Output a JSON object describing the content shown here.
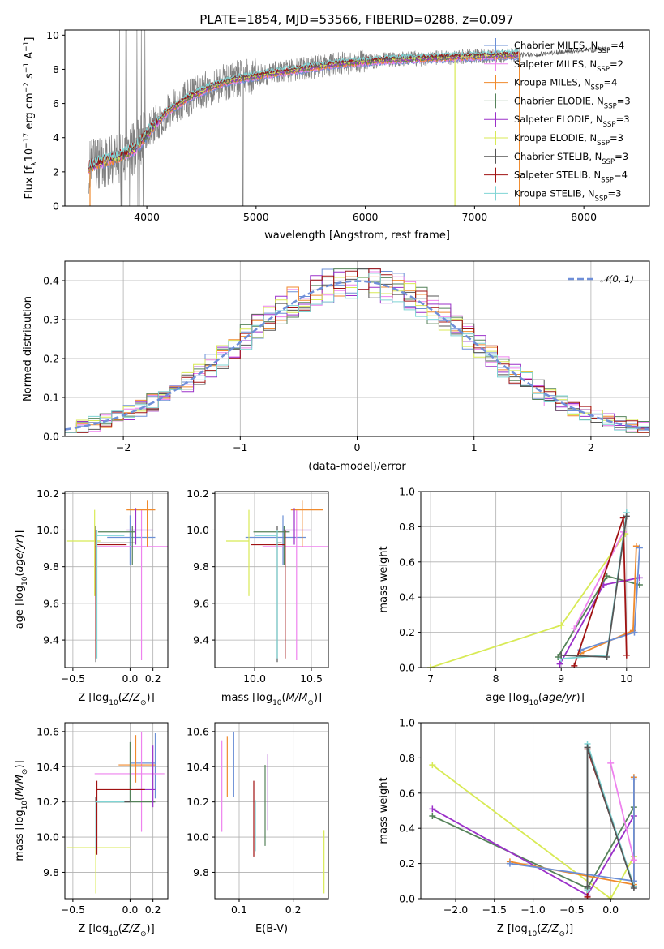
{
  "figure_title": "PLATE=1854, MJD=53566, FIBERID=0288, z=0.097",
  "colors": {
    "Chabrier MILES": "#6b8fd6",
    "Salpeter MILES": "#ee82ee",
    "Kroupa MILES": "#f08a2c",
    "Chabrier ELODIE": "#55825a",
    "Salpeter ELODIE": "#9b30c9",
    "Kroupa ELODIE": "#d8ea55",
    "Chabrier STELIB": "#555555",
    "Salpeter STELIB": "#a01212",
    "Kroupa STELIB": "#7fd4d4",
    "gauss": "#6f8fd8",
    "data": "#808080"
  },
  "chart_data": [
    {
      "id": "spectrum",
      "type": "line",
      "xlabel": "wavelength [Angstrom, rest frame]",
      "ylabel_parts": [
        "Flux [f",
        "λ",
        "10",
        "−17",
        " erg cm",
        "−2",
        " s",
        "−1",
        " A",
        "−1",
        "]"
      ],
      "xlim": [
        3250,
        8600
      ],
      "ylim": [
        0,
        10.3
      ],
      "xticks": [
        4000,
        5000,
        6000,
        7000,
        8000
      ],
      "yticks": [
        0,
        2,
        4,
        6,
        8,
        10
      ],
      "grid": false,
      "legend_position": "top-right",
      "continuum": {
        "x": [
          3470,
          3600,
          3750,
          3900,
          4050,
          4200,
          4400,
          4600,
          4800,
          5000,
          5200,
          5400,
          5600,
          5800,
          6000,
          6200,
          6400,
          6600,
          6800,
          7000,
          7200,
          7400,
          7600,
          7800,
          8000,
          8200
        ],
        "y": [
          2.3,
          2.6,
          2.9,
          3.4,
          4.6,
          5.6,
          6.4,
          7.0,
          7.4,
          7.6,
          7.8,
          8.0,
          8.2,
          8.35,
          8.45,
          8.55,
          8.6,
          8.65,
          8.7,
          8.75,
          8.8,
          8.85,
          8.9,
          9.0,
          9.1,
          9.2
        ]
      },
      "series": [
        {
          "name": "Chabrier MILES",
          "nssp": "4"
        },
        {
          "name": "Salpeter MILES",
          "nssp": "2"
        },
        {
          "name": "Kroupa MILES",
          "nssp": "4"
        },
        {
          "name": "Chabrier ELODIE",
          "nssp": "3"
        },
        {
          "name": "Salpeter ELODIE",
          "nssp": "3"
        },
        {
          "name": "Kroupa ELODIE",
          "nssp": "3"
        },
        {
          "name": "Chabrier STELIB",
          "nssp": "3"
        },
        {
          "name": "Salpeter STELIB",
          "nssp": "4"
        },
        {
          "name": "Kroupa STELIB",
          "nssp": "3"
        }
      ]
    },
    {
      "id": "residuals",
      "type": "step",
      "xlabel": "(data-model)/error",
      "ylabel": "Normed distribution",
      "xlim": [
        -2.5,
        2.5
      ],
      "ylim": [
        0,
        0.45
      ],
      "xticks": [
        -2,
        -1,
        0,
        1,
        2
      ],
      "yticks": [
        0.0,
        0.1,
        0.2,
        0.3,
        0.4
      ],
      "grid": true,
      "legend_position": "top-right",
      "gauss_label": "𝒩(0, 1)",
      "bin_width": 0.1,
      "bin_start": -2.5,
      "series_order": [
        "Chabrier MILES",
        "Salpeter MILES",
        "Kroupa MILES",
        "Chabrier ELODIE",
        "Salpeter ELODIE",
        "Kroupa ELODIE",
        "Chabrier STELIB",
        "Salpeter STELIB",
        "Kroupa STELIB"
      ]
    },
    {
      "id": "age_vs_Z",
      "type": "errorbar",
      "xlabel": "Z [log10(Z/Z⊙)]",
      "ylabel": "age  [log10(age/yr)]",
      "xlim": [
        -0.57,
        0.33
      ],
      "ylim": [
        9.25,
        10.21
      ],
      "xticks": [
        -0.5,
        0.0,
        0.2
      ],
      "yticks": [
        9.4,
        9.6,
        9.8,
        10.0,
        10.2
      ],
      "grid": true,
      "points": [
        {
          "s": "Chabrier MILES",
          "x": 0.0,
          "y": 9.96,
          "xerr": [
            0.2,
            0.22
          ],
          "yerr": [
            0.15,
            0.12
          ]
        },
        {
          "s": "Salpeter MILES",
          "x": 0.1,
          "y": 9.91,
          "xerr": [
            0.41,
            0.23
          ],
          "yerr": [
            0.62,
            0.2
          ]
        },
        {
          "s": "Kroupa MILES",
          "x": 0.15,
          "y": 10.11,
          "xerr": [
            0.18,
            0.07
          ],
          "yerr": [
            0.2,
            0.05
          ]
        },
        {
          "s": "Chabrier ELODIE",
          "x": 0.02,
          "y": 9.99,
          "xerr": [
            0.3,
            0.03
          ],
          "yerr": [
            0.18,
            0.03
          ]
        },
        {
          "s": "Salpeter ELODIE",
          "x": 0.05,
          "y": 10.0,
          "xerr": [
            0.08,
            0.15
          ],
          "yerr": [
            0.08,
            0.12
          ]
        },
        {
          "s": "Kroupa ELODIE",
          "x": -0.31,
          "y": 9.94,
          "xerr": [
            0.24,
            0.05
          ],
          "yerr": [
            0.3,
            0.17
          ]
        },
        {
          "s": "Chabrier STELIB",
          "x": -0.3,
          "y": 9.93,
          "xerr": [
            0.0,
            0.34
          ],
          "yerr": [
            0.65,
            0.09
          ]
        },
        {
          "s": "Salpeter STELIB",
          "x": -0.3,
          "y": 9.92,
          "xerr": [
            0.0,
            0.27
          ],
          "yerr": [
            0.62,
            0.08
          ]
        },
        {
          "s": "Kroupa STELIB",
          "x": -0.29,
          "y": 9.97,
          "xerr": [
            0.0,
            0.24
          ],
          "yerr": [
            0.67,
            0.03
          ]
        }
      ]
    },
    {
      "id": "age_vs_mass",
      "type": "errorbar",
      "xlabel": "mass [log10(M/M⊙)]",
      "xlim": [
        9.65,
        10.65
      ],
      "ylim": [
        9.25,
        10.21
      ],
      "xticks": [
        10.0,
        10.5
      ],
      "yticks": [
        9.4,
        9.6,
        9.8,
        10.0,
        10.2
      ],
      "grid": true,
      "points": [
        {
          "s": "Chabrier MILES",
          "x": 10.25,
          "y": 9.96,
          "xerr": [
            0.33,
            0.2
          ],
          "yerr": [
            0.15,
            0.12
          ]
        },
        {
          "s": "Salpeter MILES",
          "x": 10.37,
          "y": 9.91,
          "xerr": [
            0.3,
            0.3
          ],
          "yerr": [
            0.62,
            0.2
          ]
        },
        {
          "s": "Kroupa MILES",
          "x": 10.42,
          "y": 10.11,
          "xerr": [
            0.1,
            0.18
          ],
          "yerr": [
            0.2,
            0.05
          ]
        },
        {
          "s": "Chabrier ELODIE",
          "x": 10.26,
          "y": 9.99,
          "xerr": [
            0.27,
            0.05
          ],
          "yerr": [
            0.18,
            0.03
          ]
        },
        {
          "s": "Salpeter ELODIE",
          "x": 10.35,
          "y": 10.0,
          "xerr": [
            0.1,
            0.15
          ],
          "yerr": [
            0.08,
            0.12
          ]
        },
        {
          "s": "Kroupa ELODIE",
          "x": 9.95,
          "y": 9.94,
          "xerr": [
            0.2,
            0.0
          ],
          "yerr": [
            0.3,
            0.17
          ]
        },
        {
          "s": "Chabrier STELIB",
          "x": 10.2,
          "y": 9.93,
          "xerr": [
            0.0,
            0.04
          ],
          "yerr": [
            0.65,
            0.09
          ]
        },
        {
          "s": "Salpeter STELIB",
          "x": 10.27,
          "y": 9.92,
          "xerr": [
            0.3,
            0.0
          ],
          "yerr": [
            0.62,
            0.08
          ]
        },
        {
          "s": "Kroupa STELIB",
          "x": 10.2,
          "y": 9.97,
          "xerr": [
            0.2,
            0.0
          ],
          "yerr": [
            0.67,
            0.03
          ]
        }
      ]
    },
    {
      "id": "massweight_vs_age",
      "type": "line",
      "xlabel": "age  [log10(age/yr)]",
      "ylabel": "mass weight",
      "xlim": [
        6.85,
        10.35
      ],
      "ylim": [
        0.0,
        1.0
      ],
      "xticks": [
        7,
        8,
        9,
        10
      ],
      "yticks": [
        0.0,
        0.2,
        0.4,
        0.6,
        0.8,
        1.0
      ],
      "grid": true,
      "series": [
        {
          "s": "Kroupa ELODIE",
          "x": [
            7.0,
            9.0,
            9.98
          ],
          "y": [
            0.0,
            0.24,
            0.76
          ]
        },
        {
          "s": "Chabrier ELODIE",
          "x": [
            8.95,
            9.7,
            10.2
          ],
          "y": [
            0.06,
            0.52,
            0.47
          ]
        },
        {
          "s": "Salpeter ELODIE",
          "x": [
            8.98,
            9.65,
            10.2
          ],
          "y": [
            0.02,
            0.47,
            0.51
          ]
        },
        {
          "s": "Kroupa MILES",
          "x": [
            9.3,
            10.1,
            10.15
          ],
          "y": [
            0.08,
            0.21,
            0.69
          ]
        },
        {
          "s": "Chabrier MILES",
          "x": [
            9.3,
            10.12,
            10.2
          ],
          "y": [
            0.1,
            0.2,
            0.68
          ]
        },
        {
          "s": "Salpeter MILES",
          "x": [
            9.2,
            9.95
          ],
          "y": [
            0.22,
            0.77
          ]
        },
        {
          "s": "Salpeter STELIB",
          "x": [
            9.2,
            9.95,
            10.0
          ],
          "y": [
            0.01,
            0.85,
            0.07
          ]
        },
        {
          "s": "Kroupa STELIB",
          "x": [
            9.0,
            9.7,
            10.0
          ],
          "y": [
            0.05,
            0.07,
            0.88
          ]
        },
        {
          "s": "Chabrier STELIB",
          "x": [
            9.0,
            9.7,
            10.0
          ],
          "y": [
            0.07,
            0.06,
            0.86
          ]
        }
      ]
    },
    {
      "id": "mass_vs_Z",
      "type": "errorbar",
      "xlabel": "Z [log10(Z/Z⊙)]",
      "ylabel": "mass [log10(M/M⊙)]",
      "xlim": [
        -0.57,
        0.33
      ],
      "ylim": [
        9.65,
        10.65
      ],
      "xticks": [
        -0.5,
        0.0,
        0.2
      ],
      "yticks": [
        9.8,
        10.0,
        10.2,
        10.4,
        10.6
      ],
      "grid": true,
      "points": [
        {
          "s": "Chabrier MILES",
          "x": 0.22,
          "y": 10.42,
          "xerr": [
            0.22,
            0.0
          ],
          "yerr": [
            0.2,
            0.17
          ]
        },
        {
          "s": "Salpeter MILES",
          "x": 0.1,
          "y": 10.36,
          "xerr": [
            0.41,
            0.2
          ],
          "yerr": [
            0.33,
            0.24
          ]
        },
        {
          "s": "Kroupa MILES",
          "x": 0.05,
          "y": 10.41,
          "xerr": [
            0.15,
            0.17
          ],
          "yerr": [
            0.1,
            0.17
          ]
        },
        {
          "s": "Chabrier ELODIE",
          "x": 0.0,
          "y": 10.2,
          "xerr": [
            0.28,
            0.22
          ],
          "yerr": [
            0.0,
            0.34
          ]
        },
        {
          "s": "Salpeter ELODIE",
          "x": 0.2,
          "y": 10.27,
          "xerr": [
            0.15,
            0.02
          ],
          "yerr": [
            0.1,
            0.25
          ]
        },
        {
          "s": "Kroupa ELODIE",
          "x": -0.3,
          "y": 9.94,
          "xerr": [
            0.25,
            0.3
          ],
          "yerr": [
            0.26,
            0.1
          ]
        },
        {
          "s": "Chabrier STELIB",
          "x": -0.3,
          "y": 10.2,
          "xerr": [
            0.0,
            0.3
          ],
          "yerr": [
            0.1,
            0.03
          ]
        },
        {
          "s": "Salpeter STELIB",
          "x": -0.29,
          "y": 10.27,
          "xerr": [
            0.0,
            0.42
          ],
          "yerr": [
            0.37,
            0.05
          ]
        },
        {
          "s": "Kroupa STELIB",
          "x": -0.3,
          "y": 10.2,
          "xerr": [
            0.0,
            0.25
          ],
          "yerr": [
            0.27,
            0.0
          ]
        }
      ]
    },
    {
      "id": "mass_vs_ebv",
      "type": "errorbar",
      "xlabel": "E(B-V)",
      "xlim": [
        0.055,
        0.265
      ],
      "ylim": [
        9.65,
        10.65
      ],
      "xticks": [
        0.1,
        0.2
      ],
      "yticks": [
        9.8,
        10.0,
        10.2,
        10.4,
        10.6
      ],
      "grid": true,
      "points": [
        {
          "s": "Salpeter MILES",
          "x": 0.068,
          "y": 10.3,
          "yerr": [
            0.27,
            0.25
          ]
        },
        {
          "s": "Kroupa MILES",
          "x": 0.078,
          "y": 10.4,
          "yerr": [
            0.17,
            0.17
          ]
        },
        {
          "s": "Chabrier MILES",
          "x": 0.09,
          "y": 10.43,
          "yerr": [
            0.2,
            0.17
          ]
        },
        {
          "s": "Salpeter STELIB",
          "x": 0.127,
          "y": 10.1,
          "yerr": [
            0.21,
            0.22
          ]
        },
        {
          "s": "Kroupa STELIB",
          "x": 0.13,
          "y": 10.1,
          "yerr": [
            0.18,
            0.11
          ]
        },
        {
          "s": "Chabrier ELODIE",
          "x": 0.148,
          "y": 10.19,
          "yerr": [
            0.24,
            0.22
          ]
        },
        {
          "s": "Salpeter ELODIE",
          "x": 0.153,
          "y": 10.24,
          "yerr": [
            0.2,
            0.23
          ]
        },
        {
          "s": "Kroupa ELODIE",
          "x": 0.257,
          "y": 9.86,
          "yerr": [
            0.18,
            0.18
          ]
        }
      ]
    },
    {
      "id": "massweight_vs_Z",
      "type": "line",
      "xlabel": "Z [log10(Z/Z⊙)]",
      "ylabel": "mass weight",
      "xlim": [
        -2.45,
        0.5
      ],
      "ylim": [
        0.0,
        1.0
      ],
      "xticks": [
        -2.0,
        -1.5,
        -1.0,
        -0.5,
        0.0
      ],
      "yticks": [
        0.0,
        0.2,
        0.4,
        0.6,
        0.8,
        1.0
      ],
      "grid": true,
      "series": [
        {
          "s": "Kroupa ELODIE",
          "x": [
            -2.3,
            0.0,
            0.3
          ],
          "y": [
            0.76,
            0.0,
            0.24
          ]
        },
        {
          "s": "Chabrier ELODIE",
          "x": [
            -2.3,
            -0.3,
            0.3
          ],
          "y": [
            0.47,
            0.06,
            0.52
          ]
        },
        {
          "s": "Salpeter ELODIE",
          "x": [
            -2.3,
            -0.3,
            0.3
          ],
          "y": [
            0.51,
            0.02,
            0.47
          ]
        },
        {
          "s": "Kroupa MILES",
          "x": [
            -1.3,
            0.3,
            0.3
          ],
          "y": [
            0.21,
            0.08,
            0.69
          ]
        },
        {
          "s": "Chabrier MILES",
          "x": [
            -1.3,
            0.3,
            0.3
          ],
          "y": [
            0.2,
            0.1,
            0.68
          ]
        },
        {
          "s": "Salpeter MILES",
          "x": [
            0.0,
            0.3
          ],
          "y": [
            0.77,
            0.22
          ]
        },
        {
          "s": "Salpeter STELIB",
          "x": [
            -0.3,
            -0.3,
            0.3
          ],
          "y": [
            0.01,
            0.85,
            0.07
          ]
        },
        {
          "s": "Kroupa STELIB",
          "x": [
            -0.3,
            -0.3,
            0.3
          ],
          "y": [
            0.05,
            0.88,
            0.07
          ]
        },
        {
          "s": "Chabrier STELIB",
          "x": [
            -0.3,
            -0.3,
            0.3
          ],
          "y": [
            0.07,
            0.86,
            0.06
          ]
        }
      ]
    }
  ]
}
